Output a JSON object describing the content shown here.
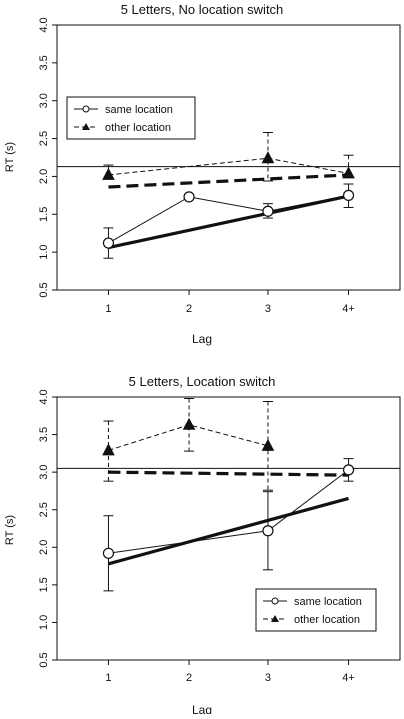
{
  "chart_data": [
    {
      "type": "line",
      "title": "5 Letters, No location switch",
      "xlabel": "Lag",
      "ylabel": "RT (s)",
      "categories": [
        "1",
        "2",
        "3",
        "4+"
      ],
      "ylim": [
        0.5,
        4.0
      ],
      "yticks": [
        0.5,
        1.0,
        1.5,
        2.0,
        2.5,
        3.0,
        3.5,
        4.0
      ],
      "ytick_labels": [
        "0.5",
        "1.0",
        "1.5",
        "2.0",
        "2.5",
        "3.0",
        "3.5",
        "4.0"
      ],
      "reference_line": 2.13,
      "legend_position": "upper-left",
      "series": [
        {
          "name": "same location",
          "line_style": "solid",
          "marker": "open-circle",
          "values": [
            1.12,
            1.73,
            1.54,
            1.75
          ],
          "err_low": [
            0.92,
            null,
            1.45,
            1.59
          ],
          "err_high": [
            1.32,
            null,
            1.64,
            1.9
          ],
          "fit_line": [
            1.06,
            1.74
          ]
        },
        {
          "name": "other location",
          "line_style": "dashed",
          "marker": "filled-triangle",
          "values": [
            2.02,
            null,
            2.24,
            2.04
          ],
          "err_low": [
            null,
            null,
            1.94,
            null
          ],
          "err_high": [
            2.15,
            null,
            2.58,
            2.28
          ],
          "fit_line": [
            1.86,
            2.02
          ]
        }
      ]
    },
    {
      "type": "line",
      "title": "5 Letters, Location switch",
      "xlabel": "Lag",
      "ylabel": "RT (s)",
      "categories": [
        "1",
        "2",
        "3",
        "4+"
      ],
      "ylim": [
        0.5,
        4.0
      ],
      "yticks": [
        0.5,
        1.0,
        1.5,
        2.0,
        2.5,
        3.0,
        3.5,
        4.0
      ],
      "ytick_labels": [
        "0.5",
        "1.0",
        "1.5",
        "2.0",
        "2.5",
        "3.0",
        "3.5",
        "4.0"
      ],
      "reference_line": 3.05,
      "legend_position": "lower-right",
      "series": [
        {
          "name": "same location",
          "line_style": "solid",
          "marker": "open-circle",
          "values": [
            1.92,
            null,
            2.22,
            3.03
          ],
          "err_low": [
            1.42,
            null,
            1.7,
            2.88
          ],
          "err_high": [
            2.42,
            null,
            2.74,
            3.18
          ],
          "fit_line": [
            1.78,
            2.65
          ]
        },
        {
          "name": "other location",
          "line_style": "dashed",
          "marker": "filled-triangle",
          "values": [
            3.29,
            3.63,
            3.35,
            null
          ],
          "err_low": [
            2.88,
            3.28,
            2.76,
            null
          ],
          "err_high": [
            3.68,
            3.98,
            3.94,
            null
          ],
          "fit_line": [
            3.0,
            2.96
          ]
        }
      ]
    }
  ]
}
